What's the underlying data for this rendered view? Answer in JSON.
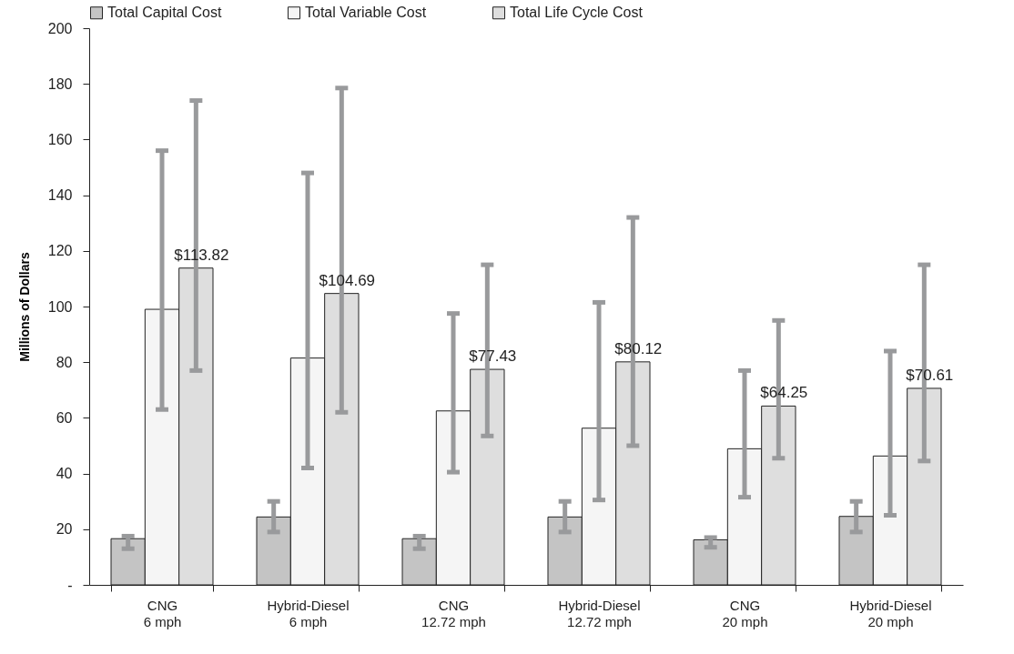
{
  "chart_data": {
    "type": "bar",
    "ylabel": "Millions of Dollars",
    "categories": [
      "CNG\n6 mph",
      "Hybrid-Diesel\n6 mph",
      "CNG\n12.72 mph",
      "Hybrid-Diesel\n12.72 mph",
      "CNG\n20 mph",
      "Hybrid-Diesel\n20 mph"
    ],
    "series": [
      {
        "name": "Total Capital Cost",
        "color": "#c4c4c4",
        "values": [
          16.6,
          24.4,
          16.6,
          24.4,
          16.2,
          24.6
        ],
        "errors": [
          [
            13,
            17.5
          ],
          [
            19,
            30
          ],
          [
            13,
            17.5
          ],
          [
            19,
            30
          ],
          [
            13.5,
            17
          ],
          [
            19,
            30
          ]
        ]
      },
      {
        "name": "Total Variable Cost",
        "color": "#f5f5f5",
        "values": [
          99,
          81.5,
          62.5,
          56.3,
          48.9,
          46.3
        ],
        "errors": [
          [
            63,
            156
          ],
          [
            42,
            148
          ],
          [
            40.5,
            97.5
          ],
          [
            30.5,
            101.5
          ],
          [
            31.5,
            77
          ],
          [
            25,
            84
          ]
        ]
      },
      {
        "name": "Total Life Cycle Cost",
        "color": "#dedede",
        "values": [
          113.82,
          104.69,
          77.43,
          80.12,
          64.25,
          70.61
        ],
        "errors": [
          [
            77,
            174
          ],
          [
            62,
            178.5
          ],
          [
            53.5,
            115
          ],
          [
            50,
            132
          ],
          [
            45.5,
            95
          ],
          [
            44.5,
            115
          ]
        ],
        "value_labels": [
          "$113.82",
          "$104.69",
          "$77.43",
          "$80.12",
          "$64.25",
          "$70.61"
        ]
      }
    ],
    "ylim": [
      0,
      200
    ],
    "yticks": [
      {
        "value": 0,
        "label": "-"
      },
      20,
      40,
      60,
      80,
      100,
      120,
      140,
      160,
      180,
      200
    ],
    "grid": false,
    "legend": "top"
  }
}
